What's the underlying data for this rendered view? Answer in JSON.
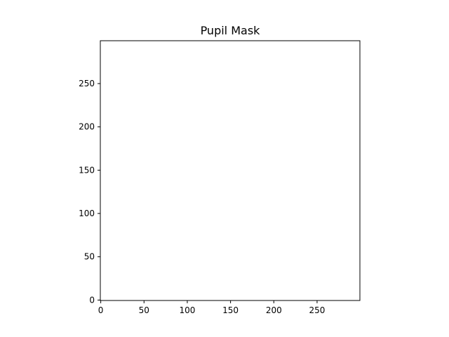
{
  "chart_data": {
    "type": "heatmap",
    "title": "Pupil Mask",
    "xlabel": "",
    "ylabel": "",
    "image_size": [
      300,
      300
    ],
    "xlim": [
      -0.5,
      299.5
    ],
    "ylim": [
      299.5,
      -0.5
    ],
    "xticks": [
      0,
      50,
      100,
      150,
      200,
      250
    ],
    "yticks": [
      0,
      50,
      100,
      150,
      200,
      250
    ],
    "colormap": [
      "#000000",
      "#ffffff"
    ],
    "mask": {
      "shape": "disk",
      "center": [
        151,
        151
      ],
      "radius": 151,
      "inside_value": 1,
      "outside_value": 0
    },
    "grid": false
  }
}
